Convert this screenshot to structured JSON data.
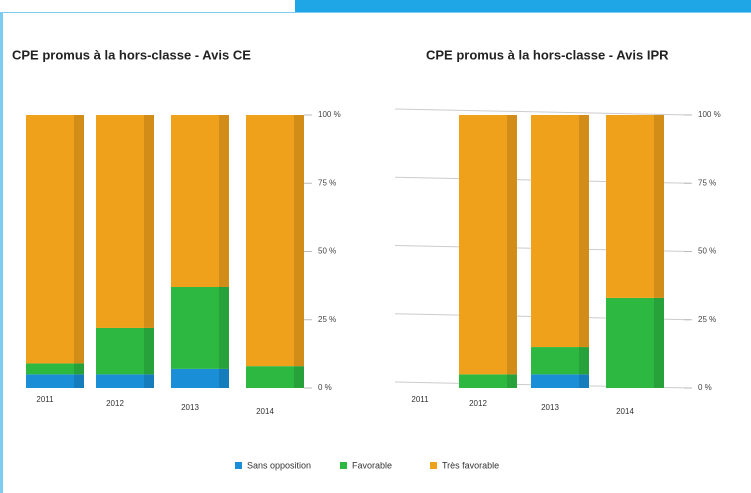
{
  "legend": [
    {
      "name": "Sans opposition",
      "color": "#1a8fd8"
    },
    {
      "name": "Favorable",
      "color": "#2db842"
    },
    {
      "name": "Très favorable",
      "color": "#f0a11c"
    }
  ],
  "chart_data": [
    {
      "type": "bar",
      "stacked": true,
      "title": "CPE promus à la hors-classe - Avis CE",
      "categories": [
        "2011",
        "2012",
        "2013",
        "2014"
      ],
      "series": [
        {
          "values": [
            5,
            5,
            7,
            0
          ]
        },
        {
          "values": [
            4,
            17,
            30,
            8
          ]
        },
        {
          "values": [
            91,
            78,
            63,
            92
          ]
        }
      ],
      "ylim": [
        0,
        100
      ],
      "yticks": [
        {
          "value": 0,
          "label": "0 %"
        },
        {
          "value": 25,
          "label": "25 %"
        },
        {
          "value": 50,
          "label": "50 %"
        },
        {
          "value": 75,
          "label": "75 %"
        },
        {
          "value": 100,
          "label": "100 %"
        }
      ]
    },
    {
      "type": "bar",
      "stacked": true,
      "title": "CPE promus à la hors-classe - Avis IPR",
      "categories": [
        "2011",
        "2012",
        "2013",
        "2014"
      ],
      "series": [
        {
          "values": [
            null,
            0,
            5,
            0
          ]
        },
        {
          "values": [
            null,
            5,
            10,
            33
          ]
        },
        {
          "values": [
            null,
            95,
            85,
            67
          ]
        }
      ],
      "ylim": [
        0,
        100
      ],
      "yticks": [
        {
          "value": 0,
          "label": "0 %"
        },
        {
          "value": 25,
          "label": "25 %"
        },
        {
          "value": 50,
          "label": "50 %"
        },
        {
          "value": 75,
          "label": "75 %"
        },
        {
          "value": 100,
          "label": "100 %"
        }
      ],
      "grid": true
    }
  ]
}
